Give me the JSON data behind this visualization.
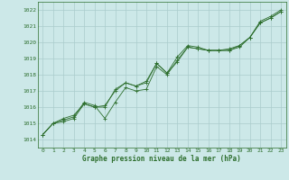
{
  "title": "Graphe pression niveau de la mer (hPa)",
  "background_color": "#cce8e8",
  "grid_color": "#aacccc",
  "line_color": "#2d6e2d",
  "marker_color": "#2d6e2d",
  "xlim": [
    -0.5,
    23.5
  ],
  "ylim": [
    1013.5,
    1022.5
  ],
  "xticks": [
    0,
    1,
    2,
    3,
    4,
    5,
    6,
    7,
    8,
    9,
    10,
    11,
    12,
    13,
    14,
    15,
    16,
    17,
    18,
    19,
    20,
    21,
    22,
    23
  ],
  "yticks": [
    1014,
    1015,
    1016,
    1017,
    1018,
    1019,
    1020,
    1021,
    1022
  ],
  "series": [
    [
      1014.3,
      1015.0,
      1015.1,
      1015.3,
      1016.2,
      1016.0,
      1016.0,
      1017.1,
      1017.5,
      1017.3,
      1017.6,
      1018.7,
      1018.1,
      1018.8,
      1019.7,
      1019.6,
      1019.5,
      1019.5,
      1019.5,
      1019.7,
      1020.3,
      1021.2,
      1021.5,
      1021.9
    ],
    [
      1014.3,
      1015.0,
      1015.2,
      1015.4,
      1016.3,
      1016.1,
      1015.3,
      1016.3,
      1017.2,
      1017.0,
      1017.1,
      1018.5,
      1018.0,
      1018.9,
      1019.7,
      1019.6,
      1019.5,
      1019.5,
      1019.5,
      1019.8,
      1020.3,
      1021.2,
      1021.5,
      1021.9
    ],
    [
      1014.3,
      1015.0,
      1015.3,
      1015.5,
      1016.2,
      1016.0,
      1016.1,
      1017.0,
      1017.5,
      1017.3,
      1017.5,
      1018.7,
      1018.1,
      1019.1,
      1019.8,
      1019.7,
      1019.5,
      1019.5,
      1019.6,
      1019.8,
      1020.3,
      1021.3,
      1021.6,
      1022.0
    ]
  ]
}
